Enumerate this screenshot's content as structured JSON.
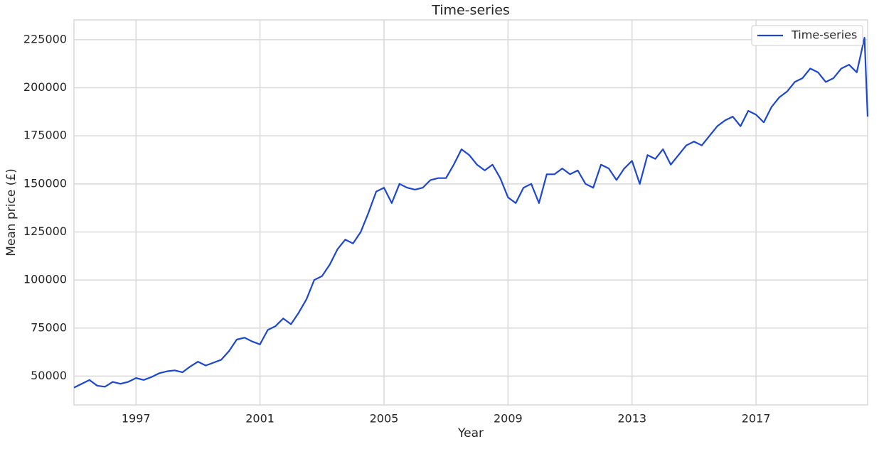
{
  "chart_data": {
    "type": "line",
    "title": "Time-series",
    "xlabel": "Year",
    "ylabel": "Mean price (£)",
    "x": [
      1995.0,
      1995.25,
      1995.5,
      1995.75,
      1996.0,
      1996.25,
      1996.5,
      1996.75,
      1997.0,
      1997.25,
      1997.5,
      1997.75,
      1998.0,
      1998.25,
      1998.5,
      1998.75,
      1999.0,
      1999.25,
      1999.5,
      1999.75,
      2000.0,
      2000.25,
      2000.5,
      2000.75,
      2001.0,
      2001.25,
      2001.5,
      2001.75,
      2002.0,
      2002.25,
      2002.5,
      2002.75,
      2003.0,
      2003.25,
      2003.5,
      2003.75,
      2004.0,
      2004.25,
      2004.5,
      2004.75,
      2005.0,
      2005.25,
      2005.5,
      2005.75,
      2006.0,
      2006.25,
      2006.5,
      2006.75,
      2007.0,
      2007.25,
      2007.5,
      2007.75,
      2008.0,
      2008.25,
      2008.5,
      2008.75,
      2009.0,
      2009.25,
      2009.5,
      2009.75,
      2010.0,
      2010.25,
      2010.5,
      2010.75,
      2011.0,
      2011.25,
      2011.5,
      2011.75,
      2012.0,
      2012.25,
      2012.5,
      2012.75,
      2013.0,
      2013.25,
      2013.5,
      2013.75,
      2014.0,
      2014.25,
      2014.5,
      2014.75,
      2015.0,
      2015.25,
      2015.5,
      2015.75,
      2016.0,
      2016.25,
      2016.5,
      2016.75,
      2017.0,
      2017.25,
      2017.5,
      2017.75,
      2018.0,
      2018.25,
      2018.5,
      2018.75,
      2019.0,
      2019.25,
      2019.5,
      2019.75,
      2020.0,
      2020.25,
      2020.5,
      2020.6
    ],
    "series": [
      {
        "name": "Time-series",
        "color": "#1c46d4",
        "values": [
          44000,
          46000,
          48000,
          45000,
          44500,
          47000,
          46000,
          47000,
          49000,
          48000,
          49500,
          51500,
          52500,
          53000,
          52000,
          55000,
          57500,
          55500,
          57000,
          58500,
          63000,
          69000,
          70000,
          68000,
          66500,
          74000,
          76000,
          80000,
          77000,
          83000,
          90000,
          100000,
          102000,
          108000,
          116000,
          121000,
          119000,
          125000,
          135000,
          146000,
          148000,
          140000,
          150000,
          148000,
          147000,
          148000,
          152000,
          153000,
          153000,
          160000,
          168000,
          165000,
          160000,
          157000,
          160000,
          153000,
          143000,
          140000,
          148000,
          150000,
          140000,
          155000,
          155000,
          158000,
          155000,
          157000,
          150000,
          148000,
          160000,
          158000,
          152000,
          158000,
          162000,
          150000,
          165000,
          163000,
          168000,
          160000,
          165000,
          170000,
          172000,
          170000,
          175000,
          180000,
          183000,
          185000,
          180000,
          188000,
          186000,
          182000,
          190000,
          195000,
          198000,
          203000,
          205000,
          210000,
          208000,
          203000,
          205000,
          210000,
          212000,
          208000,
          226000,
          185000
        ]
      }
    ],
    "xlim": [
      1995.0,
      2020.6
    ],
    "ylim": [
      35000,
      235300
    ],
    "xticks": [
      1997,
      2001,
      2005,
      2009,
      2013,
      2017
    ],
    "yticks": [
      50000,
      75000,
      100000,
      125000,
      150000,
      175000,
      200000,
      225000
    ],
    "grid": true,
    "legend": "upper right"
  }
}
